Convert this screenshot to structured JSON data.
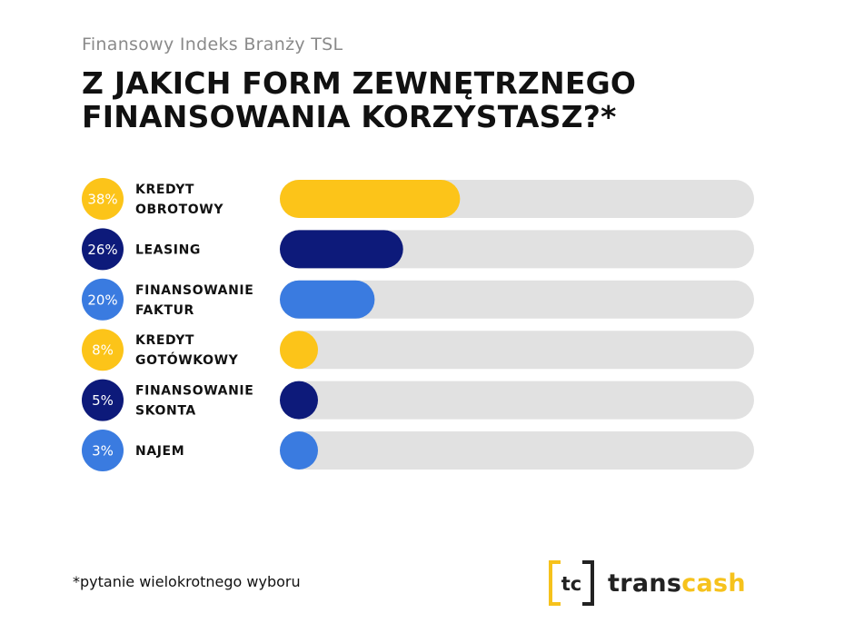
{
  "header": {
    "subtitle": "Finansowy Indeks Branży TSL",
    "title_line1": "Z JAKICH FORM ZEWNĘTRZNEGO",
    "title_line2": "FINANSOWANIA KORZYSTASZ?*"
  },
  "footnote": "*pytanie wielokrotnego wyboru",
  "brand": {
    "mark": "tc",
    "name_part1": "trans",
    "name_part2": "cash"
  },
  "colors": {
    "yellow": "#fcc419",
    "dark_blue": "#0d1a7a",
    "light_blue": "#3a7be0",
    "track": "#e1e1e1"
  },
  "chart_data": {
    "type": "bar",
    "orientation": "horizontal",
    "unit": "%",
    "xlim": [
      0,
      100
    ],
    "categories": [
      [
        "KREDYT",
        "OBROTOWY"
      ],
      [
        "LEASING"
      ],
      [
        "FINANSOWANIE",
        "FAKTUR"
      ],
      [
        "KREDYT",
        "GOTÓWKOWY"
      ],
      [
        "FINANSOWANIE",
        "SKONTA"
      ],
      [
        "NAJEM"
      ]
    ],
    "values": [
      38,
      26,
      20,
      8,
      5,
      3
    ],
    "value_labels": [
      "38%",
      "26%",
      "20%",
      "8%",
      "5%",
      "3%"
    ],
    "bar_colors": [
      "#fcc419",
      "#0d1a7a",
      "#3a7be0",
      "#fcc419",
      "#0d1a7a",
      "#3a7be0"
    ]
  }
}
